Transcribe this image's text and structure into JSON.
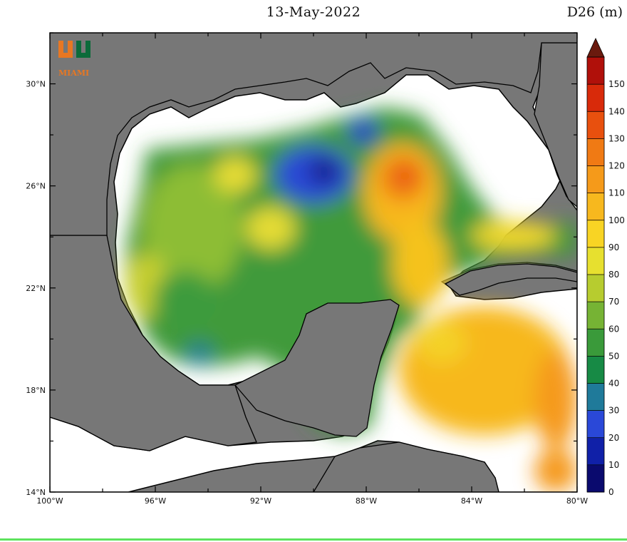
{
  "header": {
    "date": "13-May-2022",
    "variable": "D26 (m)"
  },
  "logo": {
    "text": "MIAMI"
  },
  "map": {
    "lon_range": [
      -100,
      -80
    ],
    "lat_range": [
      14,
      32
    ],
    "lon_ticks": [
      {
        "value": -100,
        "label": "100°W"
      },
      {
        "value": -96,
        "label": "96°W"
      },
      {
        "value": -92,
        "label": "92°W"
      },
      {
        "value": -88,
        "label": "88°W"
      },
      {
        "value": -84,
        "label": "84°W"
      },
      {
        "value": -80,
        "label": "80°W"
      }
    ],
    "lat_ticks": [
      {
        "value": 14,
        "label": "14°N"
      },
      {
        "value": 18,
        "label": "18°N"
      },
      {
        "value": 22,
        "label": "22°N"
      },
      {
        "value": 26,
        "label": "26°N"
      },
      {
        "value": 30,
        "label": "30°N"
      }
    ],
    "colors": {
      "land": "#777777",
      "nodata": "#ffffff",
      "coast": "#000000"
    }
  },
  "colorbar": {
    "levels": [
      0,
      10,
      20,
      30,
      40,
      50,
      60,
      70,
      80,
      90,
      100,
      110,
      120,
      130,
      140,
      150
    ],
    "colors": [
      "#0a0a6e",
      "#1020a8",
      "#2a48d8",
      "#1f7a9a",
      "#178a45",
      "#3a9a3a",
      "#76b334",
      "#b7cc2f",
      "#e7e02f",
      "#f8d424",
      "#f7b81e",
      "#f59a1a",
      "#f07a14",
      "#e8500e",
      "#d82a0a",
      "#b0100a",
      "#6a1a0e"
    ]
  }
}
